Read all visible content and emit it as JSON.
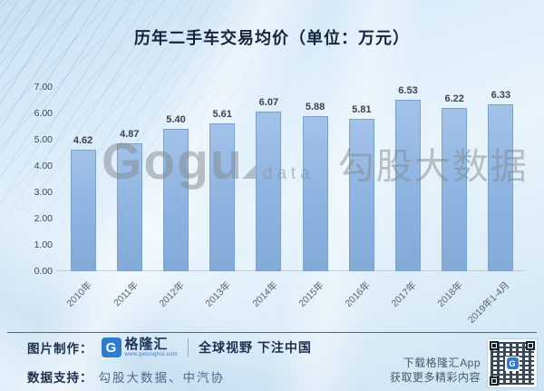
{
  "chart_data": {
    "type": "bar",
    "title": "历年二手车交易均价（单位：万元）",
    "categories": [
      "2010年",
      "2011年",
      "2012年",
      "2013年",
      "2014年",
      "2015年",
      "2016年",
      "2017年",
      "2018年",
      "2019年1-4月"
    ],
    "values": [
      4.62,
      4.87,
      5.4,
      5.61,
      6.07,
      5.88,
      5.81,
      6.53,
      6.22,
      6.33
    ],
    "xlabel": "",
    "ylabel": "",
    "ylim": [
      0,
      7
    ],
    "ytick_step": 1,
    "ytick_format": "two_decimals",
    "grid": false,
    "legend": "none",
    "value_labels_shown": true,
    "bar_color": "#8db3e0",
    "bar_border_color": "#7aa2d0"
  },
  "watermark": {
    "latin": "Gogu",
    "small": "data",
    "cn": "勾股大数据"
  },
  "footer": {
    "made_by_label": "图片制作：",
    "brand_initial": "G",
    "brand_name": "格隆汇",
    "brand_url": "www.gelonghui.com",
    "slogan": "全球视野 下注中国",
    "support_label": "数据支持：",
    "support_value": "勾股大数据、中汽协",
    "app_line1": "下载格隆汇App",
    "app_line2": "获取更多精彩内容",
    "qr_badge_letter": "G"
  },
  "colors": {
    "background_top": "#c9e0f2",
    "background_light": "#e8f4fc",
    "bar_fill": "#8db3e0",
    "bar_border": "#7aa2d0",
    "title_text": "#15233d",
    "axis_text": "#3f454f",
    "navy_text": "#1d2f4e",
    "support_text": "#50698a",
    "brand_blue": "#2e7cd0",
    "footer_divider": "#3d4d66",
    "watermark_gray": "#83898f"
  }
}
